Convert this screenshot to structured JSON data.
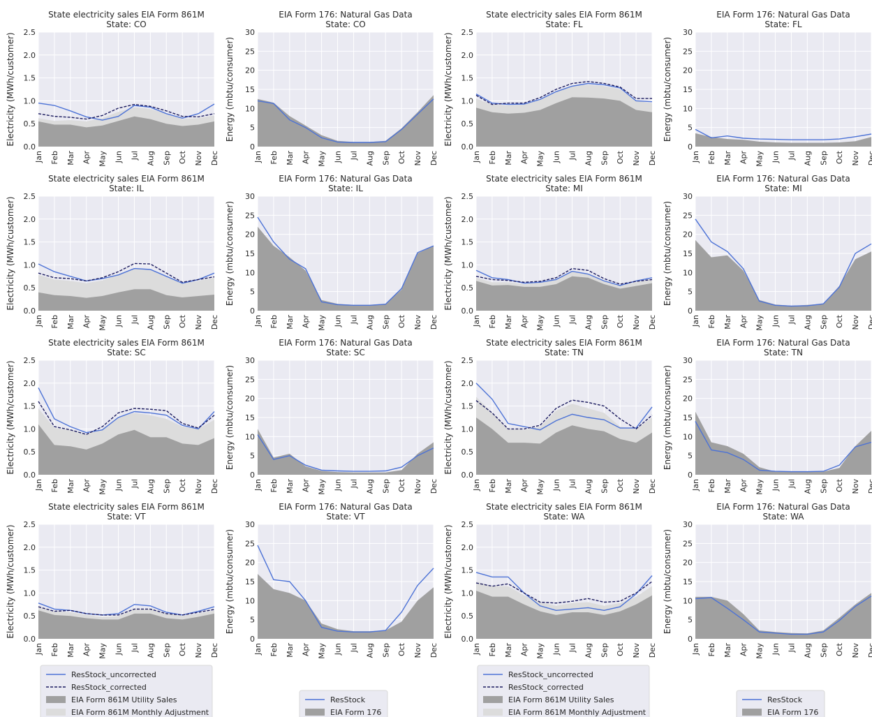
{
  "figure": {
    "months": [
      "Jan",
      "Feb",
      "Mar",
      "Apr",
      "May",
      "Jun",
      "Jul",
      "Aug",
      "Sep",
      "Oct",
      "Nov",
      "Dec"
    ],
    "legends": {
      "electricity": [
        {
          "label": "ResStock_uncorrected",
          "kind": "line",
          "color": "#4c72d6"
        },
        {
          "label": "ResStock_corrected",
          "kind": "dash",
          "color": "#1a1a5e"
        },
        {
          "label": "EIA Form 861M Utility Sales",
          "kind": "patch",
          "color": "#a0a0a0"
        },
        {
          "label": "EIA Form 861M Monthly Adjustment",
          "kind": "patch",
          "color": "#dcdcdc"
        }
      ],
      "gas": [
        {
          "label": "ResStock",
          "kind": "line",
          "color": "#4c72d6"
        },
        {
          "label": "EIA Form 176",
          "kind": "patch",
          "color": "#a0a0a0"
        }
      ]
    },
    "colors": {
      "panel_bg": "#eaeaf2",
      "grid": "#ffffff",
      "uncorrected": "#4c72d6",
      "corrected": "#1a1a5e",
      "sales": "#a0a0a0",
      "adjustment": "#dcdcdc"
    }
  },
  "chart_data": [
    {
      "type": "area",
      "title": "State electricity sales EIA Form 861M",
      "subtitle": "State: CO",
      "ylabel": "Electricity (MWh/customer)",
      "ylim": [
        0,
        2.5
      ],
      "yticks": [
        "0.0",
        "0.5",
        "1.0",
        "1.5",
        "2.0",
        "2.5"
      ],
      "sales": [
        0.55,
        0.48,
        0.48,
        0.42,
        0.46,
        0.56,
        0.66,
        0.6,
        0.5,
        0.45,
        0.48,
        0.55
      ],
      "adjusted": [
        0.62,
        0.56,
        0.58,
        0.55,
        0.62,
        0.76,
        0.86,
        0.82,
        0.72,
        0.6,
        0.62,
        0.68
      ],
      "uncorrected": [
        0.95,
        0.9,
        0.78,
        0.65,
        0.58,
        0.66,
        0.9,
        0.86,
        0.72,
        0.62,
        0.72,
        0.93
      ],
      "corrected": [
        0.72,
        0.66,
        0.64,
        0.6,
        0.68,
        0.84,
        0.92,
        0.88,
        0.78,
        0.66,
        0.65,
        0.72
      ]
    },
    {
      "type": "area",
      "title": "EIA Form 176: Natural Gas Data",
      "subtitle": "State: CO",
      "ylabel": "Energy (mbtu/consumer)",
      "ylim": [
        0,
        30
      ],
      "yticks": [
        "0",
        "5",
        "10",
        "15",
        "20",
        "25",
        "30"
      ],
      "sales": [
        12.5,
        11.5,
        8.0,
        5.5,
        3.0,
        1.5,
        1.2,
        1.2,
        1.5,
        4.8,
        9.0,
        13.5
      ],
      "resstock": [
        12.0,
        11.3,
        7.0,
        5.0,
        2.3,
        1.2,
        1.1,
        1.1,
        1.3,
        4.5,
        8.5,
        12.5
      ]
    },
    {
      "type": "area",
      "title": "State electricity sales EIA Form 861M",
      "subtitle": "State: FL",
      "ylabel": "Electricity (MWh/customer)",
      "ylim": [
        0,
        2.5
      ],
      "yticks": [
        "0.0",
        "0.5",
        "1.0",
        "1.5",
        "2.0",
        "2.5"
      ],
      "sales": [
        0.85,
        0.75,
        0.72,
        0.74,
        0.8,
        0.95,
        1.08,
        1.07,
        1.05,
        1.0,
        0.8,
        0.75
      ],
      "adjusted": [
        1.05,
        0.92,
        0.9,
        0.92,
        1.02,
        1.2,
        1.33,
        1.35,
        1.32,
        1.25,
        1.0,
        0.95
      ],
      "uncorrected": [
        1.15,
        0.95,
        0.92,
        0.93,
        1.03,
        1.2,
        1.32,
        1.38,
        1.35,
        1.28,
        1.0,
        0.98
      ],
      "corrected": [
        1.12,
        0.92,
        0.95,
        0.95,
        1.07,
        1.25,
        1.38,
        1.42,
        1.38,
        1.3,
        1.05,
        1.05
      ]
    },
    {
      "type": "area",
      "title": "EIA Form 176: Natural Gas Data",
      "subtitle": "State: FL",
      "ylabel": "Energy (mbtu/consumer)",
      "ylim": [
        0,
        30
      ],
      "yticks": [
        "0",
        "5",
        "10",
        "15",
        "20",
        "25",
        "30"
      ],
      "sales": [
        3.5,
        2.5,
        2.0,
        1.8,
        1.3,
        1.1,
        1.0,
        1.0,
        1.0,
        1.1,
        1.4,
        2.5
      ],
      "resstock": [
        4.5,
        2.3,
        2.8,
        2.2,
        2.0,
        1.9,
        1.8,
        1.8,
        1.8,
        2.0,
        2.6,
        3.3
      ]
    },
    {
      "type": "area",
      "title": "State electricity sales EIA Form 861M",
      "subtitle": "State: IL",
      "ylabel": "Electricity (MWh/customer)",
      "ylim": [
        0,
        2.5
      ],
      "yticks": [
        "0.0",
        "0.5",
        "1.0",
        "1.5",
        "2.0",
        "2.5"
      ],
      "sales": [
        0.4,
        0.34,
        0.32,
        0.28,
        0.32,
        0.4,
        0.47,
        0.47,
        0.34,
        0.29,
        0.32,
        0.35
      ],
      "adjusted": [
        0.78,
        0.68,
        0.65,
        0.6,
        0.66,
        0.8,
        0.92,
        0.9,
        0.75,
        0.6,
        0.65,
        0.72
      ],
      "uncorrected": [
        1.02,
        0.85,
        0.75,
        0.65,
        0.7,
        0.78,
        0.92,
        0.9,
        0.75,
        0.6,
        0.68,
        0.82
      ],
      "corrected": [
        0.82,
        0.72,
        0.7,
        0.65,
        0.72,
        0.85,
        1.03,
        1.02,
        0.82,
        0.62,
        0.68,
        0.74
      ]
    },
    {
      "type": "area",
      "title": "EIA Form 176: Natural Gas Data",
      "subtitle": "State: IL",
      "ylabel": "Energy (mbtu/consumer)",
      "ylim": [
        0,
        30
      ],
      "yticks": [
        "0",
        "5",
        "10",
        "15",
        "20",
        "25",
        "30"
      ],
      "sales": [
        22.0,
        17.0,
        14.0,
        10.5,
        2.8,
        1.8,
        1.5,
        1.5,
        1.8,
        5.5,
        15.0,
        17.0
      ],
      "resstock": [
        24.5,
        18.0,
        13.5,
        11.0,
        2.3,
        1.6,
        1.4,
        1.4,
        1.7,
        5.8,
        15.2,
        17.0
      ]
    },
    {
      "type": "area",
      "title": "State electricity sales EIA Form 861M",
      "subtitle": "State: MI",
      "ylabel": "Electricity (MWh/customer)",
      "ylim": [
        0,
        2.5
      ],
      "yticks": [
        "0.0",
        "0.5",
        "1.0",
        "1.5",
        "2.0",
        "2.5"
      ],
      "sales": [
        0.65,
        0.55,
        0.56,
        0.52,
        0.52,
        0.58,
        0.75,
        0.72,
        0.58,
        0.48,
        0.54,
        0.6
      ],
      "adjusted": [
        0.72,
        0.62,
        0.62,
        0.58,
        0.62,
        0.7,
        0.85,
        0.8,
        0.65,
        0.55,
        0.62,
        0.68
      ],
      "uncorrected": [
        0.88,
        0.72,
        0.68,
        0.6,
        0.62,
        0.68,
        0.86,
        0.8,
        0.65,
        0.55,
        0.65,
        0.72
      ],
      "corrected": [
        0.75,
        0.68,
        0.66,
        0.62,
        0.64,
        0.72,
        0.92,
        0.88,
        0.7,
        0.58,
        0.64,
        0.68
      ]
    },
    {
      "type": "area",
      "title": "EIA Form 176: Natural Gas Data",
      "subtitle": "State: MI",
      "ylabel": "Energy (mbtu/consumer)",
      "ylim": [
        0,
        30
      ],
      "yticks": [
        "0",
        "5",
        "10",
        "15",
        "20",
        "25",
        "30"
      ],
      "sales": [
        18.5,
        14.0,
        14.5,
        10.5,
        2.8,
        1.6,
        1.3,
        1.5,
        1.8,
        6.5,
        13.5,
        15.5
      ],
      "resstock": [
        24.0,
        18.0,
        15.5,
        11.0,
        2.5,
        1.4,
        1.2,
        1.3,
        1.8,
        6.2,
        15.0,
        17.5
      ]
    },
    {
      "type": "area",
      "title": "State electricity sales EIA Form 861M",
      "subtitle": "State: SC",
      "ylabel": "Electricity (MWh/customer)",
      "ylim": [
        0,
        2.5
      ],
      "yticks": [
        "0.0",
        "0.5",
        "1.0",
        "1.5",
        "2.0",
        "2.5"
      ],
      "sales": [
        1.1,
        0.65,
        0.62,
        0.55,
        0.68,
        0.88,
        0.98,
        0.82,
        0.82,
        0.68,
        0.65,
        0.8
      ],
      "adjusted": [
        1.45,
        1.02,
        0.98,
        0.88,
        1.0,
        1.25,
        1.35,
        1.3,
        1.22,
        1.05,
        1.0,
        1.2
      ],
      "uncorrected": [
        1.9,
        1.22,
        1.05,
        0.92,
        0.98,
        1.25,
        1.38,
        1.35,
        1.3,
        1.08,
        1.0,
        1.38
      ],
      "corrected": [
        1.6,
        1.05,
        0.98,
        0.88,
        1.05,
        1.35,
        1.45,
        1.43,
        1.4,
        1.12,
        1.02,
        1.3
      ]
    },
    {
      "type": "area",
      "title": "EIA Form 176: Natural Gas Data",
      "subtitle": "State: SC",
      "ylabel": "Energy (mbtu/consumer)",
      "ylim": [
        0,
        30
      ],
      "yticks": [
        "0",
        "5",
        "10",
        "15",
        "20",
        "25",
        "30"
      ],
      "sales": [
        12.0,
        4.5,
        5.5,
        2.2,
        1.0,
        0.7,
        0.6,
        0.6,
        0.6,
        1.2,
        5.5,
        8.5
      ],
      "resstock": [
        10.5,
        4.0,
        5.0,
        2.5,
        1.2,
        1.0,
        0.9,
        0.9,
        1.0,
        2.0,
        5.0,
        7.0
      ]
    },
    {
      "type": "area",
      "title": "State electricity sales EIA Form 861M",
      "subtitle": "State: TN",
      "ylabel": "Electricity (MWh/customer)",
      "ylim": [
        0,
        2.5
      ],
      "yticks": [
        "0.0",
        "0.5",
        "1.0",
        "1.5",
        "2.0",
        "2.5"
      ],
      "sales": [
        1.25,
        1.0,
        0.7,
        0.7,
        0.68,
        0.92,
        1.08,
        1.0,
        0.95,
        0.78,
        0.7,
        0.92
      ],
      "adjusted": [
        1.7,
        1.35,
        1.0,
        0.98,
        1.05,
        1.4,
        1.55,
        1.45,
        1.35,
        1.05,
        1.0,
        1.25
      ],
      "uncorrected": [
        2.0,
        1.65,
        1.12,
        1.05,
        0.98,
        1.18,
        1.32,
        1.25,
        1.2,
        1.02,
        1.02,
        1.48
      ],
      "corrected": [
        1.62,
        1.35,
        1.0,
        1.0,
        1.08,
        1.45,
        1.63,
        1.58,
        1.5,
        1.22,
        1.0,
        1.3
      ]
    },
    {
      "type": "area",
      "title": "EIA Form 176: Natural Gas Data",
      "subtitle": "State: TN",
      "ylabel": "Energy (mbtu/consumer)",
      "ylim": [
        0,
        30
      ],
      "yticks": [
        "0",
        "5",
        "10",
        "15",
        "20",
        "25",
        "30"
      ],
      "sales": [
        16.5,
        8.5,
        7.5,
        5.5,
        2.0,
        0.8,
        0.8,
        0.8,
        0.8,
        1.8,
        7.5,
        11.5
      ],
      "resstock": [
        14.0,
        6.5,
        5.8,
        4.0,
        1.2,
        0.9,
        0.8,
        0.8,
        0.9,
        2.5,
        7.3,
        8.5
      ]
    },
    {
      "type": "area",
      "title": "State electricity sales EIA Form 861M",
      "subtitle": "State: VT",
      "ylabel": "Electricity (MWh/customer)",
      "ylim": [
        0,
        2.5
      ],
      "yticks": [
        "0.0",
        "0.5",
        "1.0",
        "1.5",
        "2.0",
        "2.5"
      ],
      "sales": [
        0.62,
        0.52,
        0.5,
        0.45,
        0.42,
        0.42,
        0.55,
        0.55,
        0.45,
        0.42,
        0.48,
        0.55
      ],
      "adjusted": [
        0.7,
        0.6,
        0.58,
        0.52,
        0.48,
        0.5,
        0.65,
        0.65,
        0.55,
        0.5,
        0.55,
        0.62
      ],
      "uncorrected": [
        0.78,
        0.65,
        0.62,
        0.55,
        0.52,
        0.55,
        0.75,
        0.72,
        0.58,
        0.52,
        0.6,
        0.7
      ],
      "corrected": [
        0.7,
        0.6,
        0.62,
        0.55,
        0.52,
        0.52,
        0.65,
        0.65,
        0.55,
        0.52,
        0.58,
        0.64
      ]
    },
    {
      "type": "area",
      "title": "EIA Form 176: Natural Gas Data",
      "subtitle": "State: VT",
      "ylabel": "Energy (mbtu/consumer)",
      "ylim": [
        0,
        30
      ],
      "yticks": [
        "0",
        "5",
        "10",
        "15",
        "20",
        "25",
        "30"
      ],
      "sales": [
        17.0,
        13.0,
        12.0,
        10.0,
        4.0,
        2.5,
        2.0,
        2.0,
        2.2,
        4.5,
        10.0,
        13.5
      ],
      "resstock": [
        24.5,
        15.5,
        15.0,
        10.0,
        3.0,
        2.0,
        1.8,
        1.8,
        2.2,
        7.0,
        14.0,
        18.5
      ]
    },
    {
      "type": "area",
      "title": "State electricity sales EIA Form 861M",
      "subtitle": "State: WA",
      "ylabel": "Electricity (MWh/customer)",
      "ylim": [
        0,
        2.5
      ],
      "yticks": [
        "0.0",
        "0.5",
        "1.0",
        "1.5",
        "2.0",
        "2.5"
      ],
      "sales": [
        1.05,
        0.92,
        0.92,
        0.75,
        0.6,
        0.52,
        0.58,
        0.58,
        0.52,
        0.6,
        0.75,
        0.95
      ],
      "adjusted": [
        1.25,
        1.15,
        1.15,
        0.95,
        0.8,
        0.72,
        0.78,
        0.8,
        0.72,
        0.78,
        0.92,
        1.15
      ],
      "uncorrected": [
        1.45,
        1.35,
        1.35,
        1.0,
        0.72,
        0.62,
        0.65,
        0.68,
        0.62,
        0.7,
        0.98,
        1.38
      ],
      "corrected": [
        1.22,
        1.15,
        1.2,
        1.0,
        0.8,
        0.78,
        0.82,
        0.88,
        0.8,
        0.82,
        1.0,
        1.25
      ]
    },
    {
      "type": "area",
      "title": "EIA Form 176: Natural Gas Data",
      "subtitle": "State: WA",
      "ylabel": "Energy (mbtu/consumer)",
      "ylim": [
        0,
        30
      ],
      "yticks": [
        "0",
        "5",
        "10",
        "15",
        "20",
        "25",
        "30"
      ],
      "sales": [
        11.0,
        11.0,
        10.0,
        6.5,
        2.2,
        1.8,
        1.5,
        1.4,
        2.2,
        5.5,
        9.0,
        12.0
      ],
      "resstock": [
        10.5,
        10.8,
        8.0,
        5.0,
        1.8,
        1.5,
        1.2,
        1.2,
        1.8,
        4.8,
        8.5,
        11.2
      ]
    }
  ]
}
